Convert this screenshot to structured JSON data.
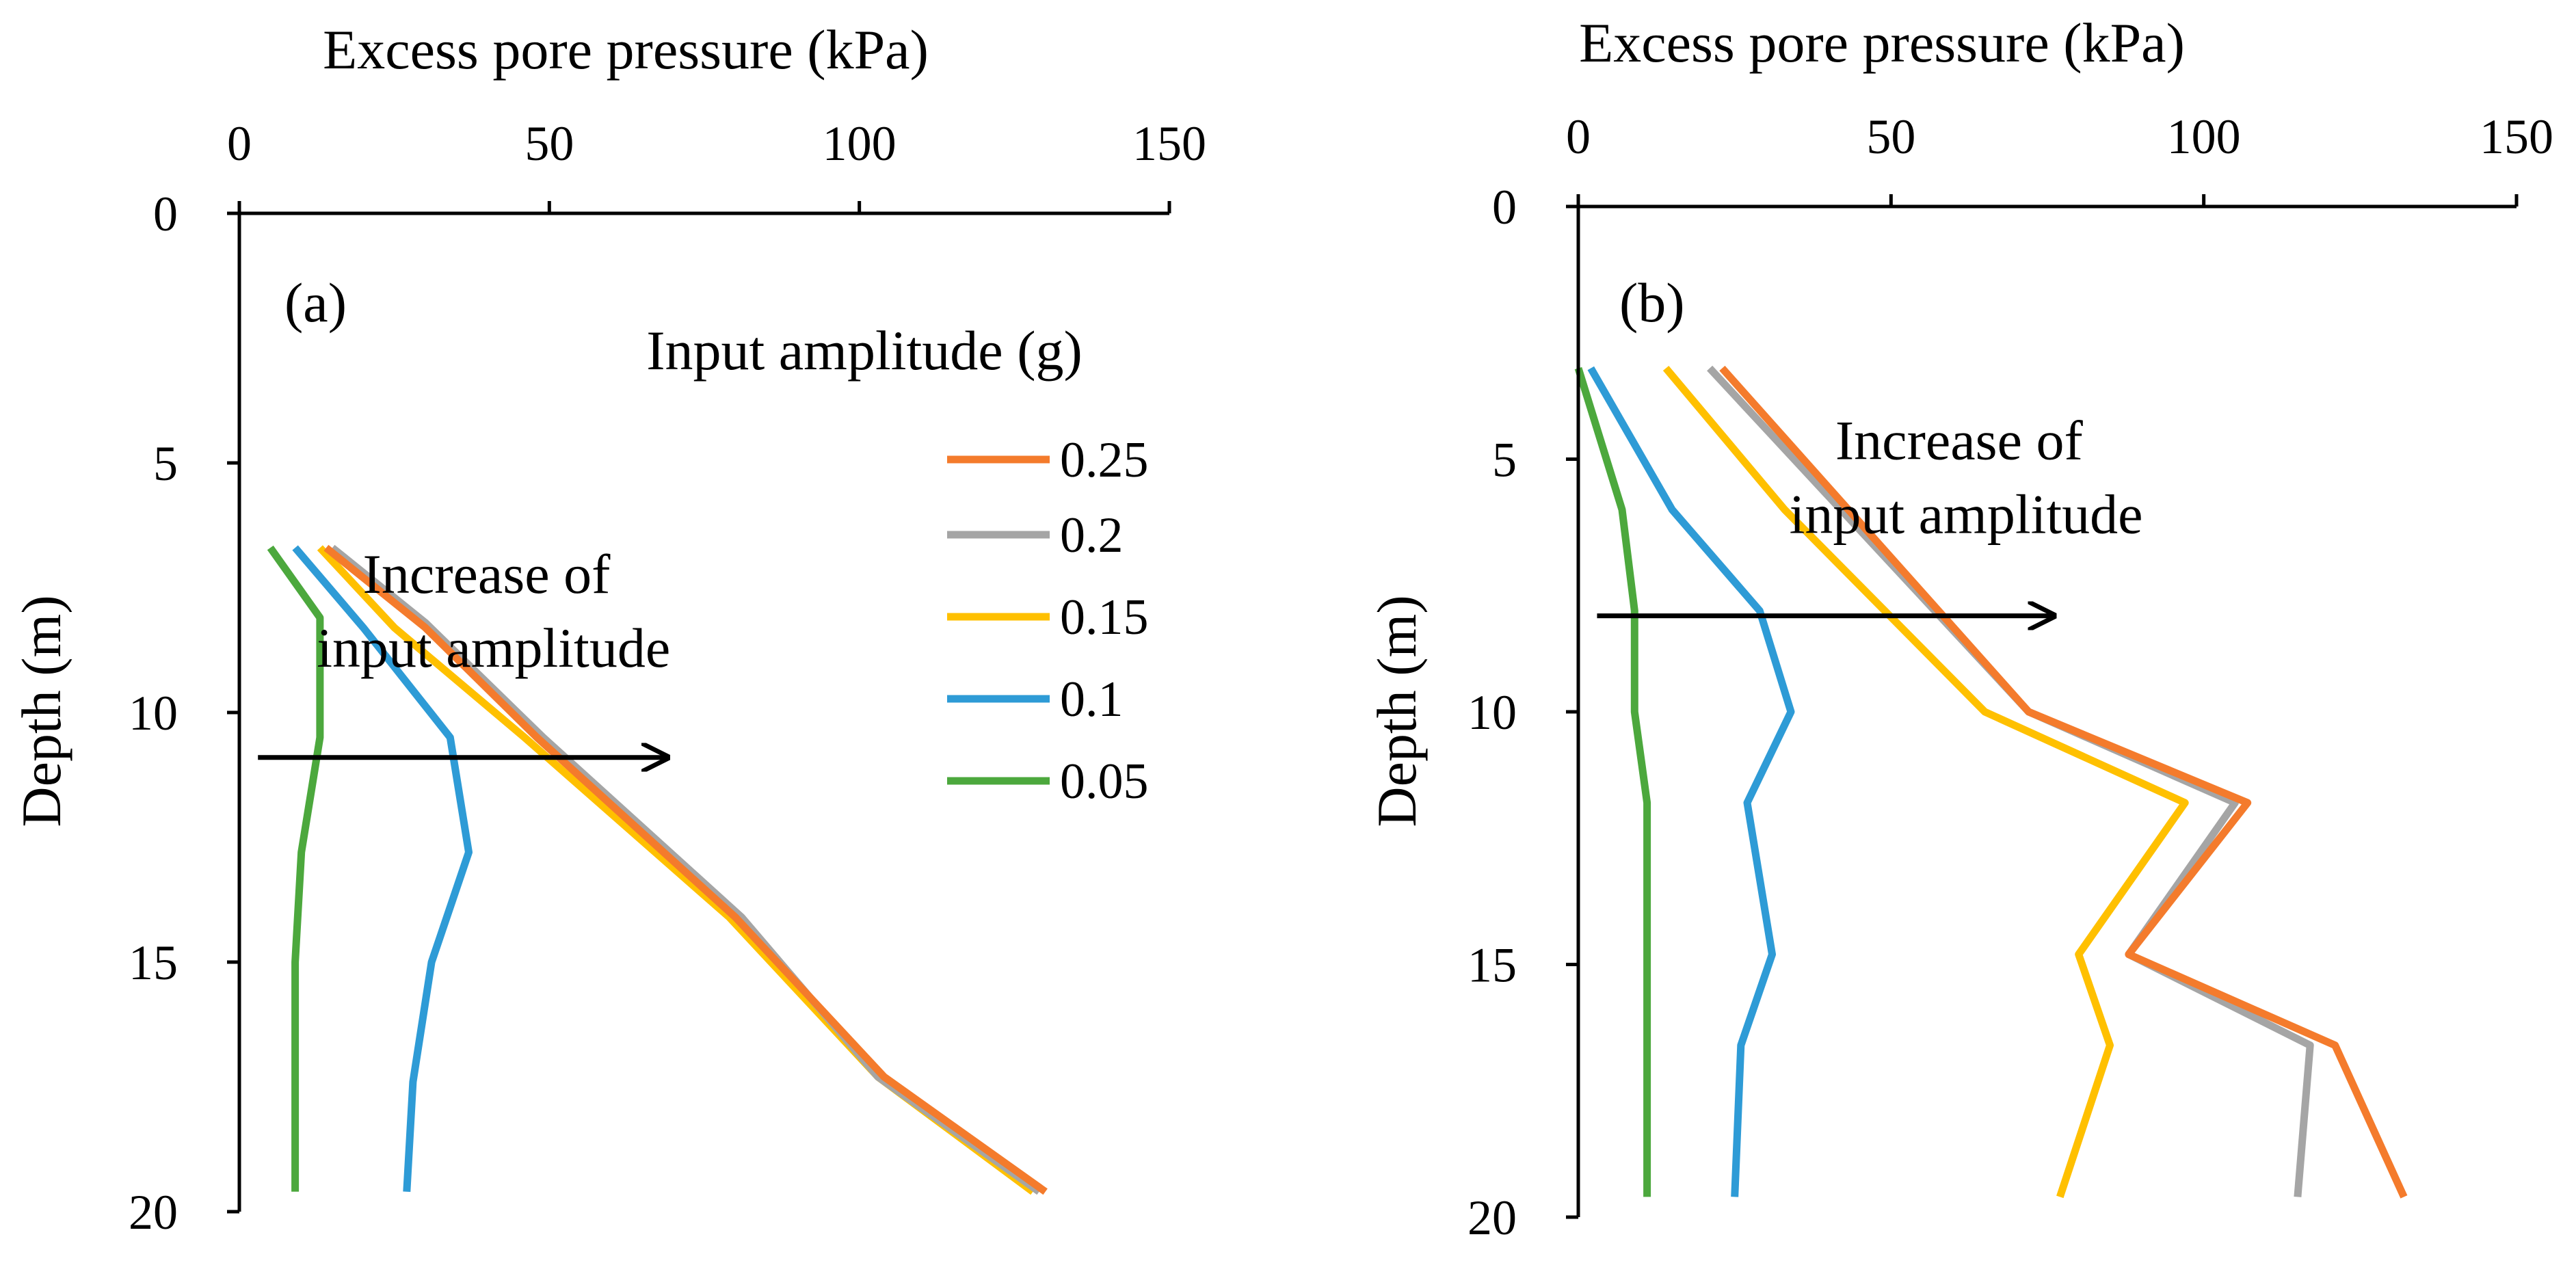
{
  "colors": {
    "0.25": "#F47B2C",
    "0.2": "#A5A5A5",
    "0.15": "#FFC000",
    "0.1": "#2E9BD6",
    "0.05": "#4CA83D",
    "axis": "#000000"
  },
  "legend": {
    "title": "Input amplitude (g)",
    "items": [
      "0.25",
      "0.2",
      "0.15",
      "0.1",
      "0.05"
    ]
  },
  "chart_data": [
    {
      "type": "line",
      "panel_label": "(a)",
      "title": "",
      "xlabel": "Excess pore pressure (kPa)",
      "ylabel": "Depth (m)",
      "xlim": [
        0,
        150
      ],
      "ylim": [
        0,
        20
      ],
      "y_inverted": true,
      "x_axis_position": "top",
      "x_ticks": [
        0,
        50,
        100,
        150
      ],
      "x_tick_labels": [
        "0",
        "50",
        "100",
        "150"
      ],
      "y_ticks": [
        0,
        5,
        10,
        15,
        20
      ],
      "y_tick_labels": [
        "0",
        "5",
        "10",
        "15",
        "20"
      ],
      "annotation": {
        "lines": [
          "Increase of",
          "input amplitude"
        ],
        "arrow_from": [
          3,
          10.9
        ],
        "arrow_to": [
          69,
          10.9
        ],
        "text_at": [
          41,
          7.6
        ]
      },
      "series": [
        {
          "name": "0.25",
          "x": [
            14,
            30,
            48,
            80,
            104,
            130
          ],
          "y": [
            6.7,
            8.3,
            10.5,
            14.1,
            17.3,
            19.6
          ]
        },
        {
          "name": "0.2",
          "x": [
            15,
            30,
            49,
            81,
            103,
            129
          ],
          "y": [
            6.7,
            8.2,
            10.5,
            14.1,
            17.3,
            19.6
          ]
        },
        {
          "name": "0.15",
          "x": [
            13,
            25,
            46,
            79,
            103,
            128
          ],
          "y": [
            6.7,
            8.3,
            10.5,
            14.1,
            17.3,
            19.6
          ]
        },
        {
          "name": "0.1",
          "x": [
            9,
            20,
            34,
            37,
            31,
            28,
            27
          ],
          "y": [
            6.7,
            8.3,
            10.5,
            12.8,
            15.0,
            17.4,
            19.6
          ]
        },
        {
          "name": "0.05",
          "x": [
            5,
            13,
            13,
            10,
            9,
            9,
            9
          ],
          "y": [
            6.7,
            8.1,
            10.5,
            12.8,
            15.0,
            17.4,
            19.6
          ]
        }
      ]
    },
    {
      "type": "line",
      "panel_label": "(b)",
      "title": "",
      "xlabel": "Excess pore pressure (kPa)",
      "ylabel": "Depth (m)",
      "xlim": [
        0,
        150
      ],
      "ylim": [
        0,
        20
      ],
      "y_inverted": true,
      "x_axis_position": "top",
      "x_ticks": [
        0,
        50,
        100,
        150
      ],
      "x_tick_labels": [
        "0",
        "50",
        "100",
        "150"
      ],
      "y_ticks": [
        0,
        5,
        10,
        15,
        20
      ],
      "y_tick_labels": [
        "0",
        "5",
        "10",
        "15",
        "20"
      ],
      "annotation": {
        "lines": [
          "Increase of",
          "input amplitude"
        ],
        "arrow_from": [
          3,
          8.1
        ],
        "arrow_to": [
          76,
          8.1
        ],
        "text_at": [
          62,
          5.0
        ]
      },
      "series": [
        {
          "name": "0.25",
          "x": [
            23,
            72,
            107,
            88,
            121,
            132
          ],
          "y": [
            3.2,
            10.0,
            11.8,
            14.8,
            16.6,
            19.6
          ]
        },
        {
          "name": "0.2",
          "x": [
            21,
            72,
            105,
            88,
            117,
            115
          ],
          "y": [
            3.2,
            10.0,
            11.8,
            14.8,
            16.6,
            19.6
          ]
        },
        {
          "name": "0.15",
          "x": [
            14,
            33,
            65,
            97,
            80,
            85,
            77
          ],
          "y": [
            3.2,
            6.0,
            10.0,
            11.8,
            14.8,
            16.6,
            19.6
          ]
        },
        {
          "name": "0.1",
          "x": [
            2,
            15,
            29,
            34,
            27,
            31,
            26,
            25
          ],
          "y": [
            3.2,
            6.0,
            8.0,
            10.0,
            11.8,
            14.8,
            16.6,
            19.6
          ]
        },
        {
          "name": "0.05",
          "x": [
            0,
            7,
            9,
            9,
            11,
            11,
            11,
            11
          ],
          "y": [
            3.2,
            6.0,
            8.0,
            10.0,
            11.8,
            14.8,
            16.6,
            19.6
          ]
        }
      ]
    }
  ]
}
